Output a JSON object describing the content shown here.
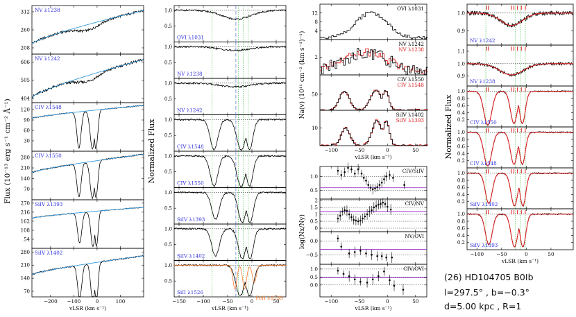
{
  "colors": {
    "frame": "#000000",
    "label_blue": "#3333dd",
    "label_red": "#e02020",
    "fit_cyan": "#3399dd",
    "model_red": "#dd2222",
    "hi_orange": "#ff7a2a",
    "ref_purple": "#9933cc",
    "mark_green": "#33bb33",
    "mark_blue": "#5577cc"
  },
  "object_info": {
    "name": "(26)  HD104705  B0Ib",
    "coords": "l=297.5° , b=−0.3°",
    "dist": "d=5.00 kpc , R=1"
  },
  "chart_data": [
    {
      "id": "flux",
      "type": "line",
      "ylabel": "Flux  (10⁻¹³ erg s⁻¹ cm⁻² Å⁻¹)",
      "xlabel": "vLSR (km s⁻¹)",
      "xlim": [
        -280,
        200
      ],
      "xticks": [
        -200,
        -100,
        0,
        100
      ],
      "tick_labels": [
        "−200",
        "−100",
        "0",
        "100"
      ],
      "panels": [
        {
          "label": "NV λ1238",
          "ylim": [
            190,
            330
          ],
          "yticks": [
            208,
            260,
            312
          ],
          "cont": [
            220,
            316
          ],
          "kind": "nv"
        },
        {
          "label": "NV λ1242",
          "ylim": [
            380,
            650
          ],
          "yticks": [
            404,
            505,
            606
          ],
          "cont": [
            410,
            620
          ],
          "kind": "nv"
        },
        {
          "label": "CIV λ1548",
          "ylim": [
            0,
            140
          ],
          "yticks": [
            0,
            30,
            60,
            90,
            120
          ],
          "cont": [
            95,
            132
          ],
          "kind": "civ"
        },
        {
          "label": "CIV λ1550",
          "ylim": [
            0,
            320
          ],
          "yticks": [
            0,
            70,
            140,
            210,
            280
          ],
          "cont": [
            180,
            300
          ],
          "kind": "civ"
        },
        {
          "label": "SiIV λ1393",
          "ylim": [
            0,
            290
          ],
          "yticks": [
            54,
            108,
            162,
            216,
            270
          ],
          "cont": [
            180,
            245
          ],
          "kind": "siiv"
        },
        {
          "label": "SiIV λ1402",
          "ylim": [
            40,
            300
          ],
          "yticks": [
            70,
            140,
            210,
            280
          ],
          "cont": [
            160,
            260
          ],
          "kind": "siiv"
        }
      ]
    },
    {
      "id": "normflux",
      "type": "line",
      "ylabel": "Normalized Flux",
      "xlabel": "vLSR (km s⁻¹)",
      "xlim": [
        -160,
        70
      ],
      "xticks": [
        -150,
        -100,
        -50,
        0,
        50
      ],
      "tick_labels": [
        "−150",
        "−100",
        "−50",
        "0",
        "50"
      ],
      "panels": [
        {
          "label": "OVI λ1031",
          "ylim": [
            0,
            1.15
          ],
          "yticks": [
            0.0,
            0.5,
            1.0
          ],
          "kind": "ovi"
        },
        {
          "label": "NV λ1238",
          "ylim": [
            0,
            1.15
          ],
          "yticks": [
            0.0,
            0.5,
            1.0
          ],
          "kind": "nvn"
        },
        {
          "label": "NV λ1242",
          "ylim": [
            0,
            1.15
          ],
          "yticks": [
            0.0,
            0.5,
            1.0
          ],
          "kind": "nvn"
        },
        {
          "label": "CIV λ1548",
          "ylim": [
            0,
            1.15
          ],
          "yticks": [
            0.0,
            0.5,
            1.0
          ],
          "kind": "civn"
        },
        {
          "label": "CIV λ1550",
          "ylim": [
            0,
            1.15
          ],
          "yticks": [
            0.0,
            0.5,
            1.0
          ],
          "kind": "civn"
        },
        {
          "label": "SiIV λ1393",
          "ylim": [
            0,
            1.15
          ],
          "yticks": [
            0.0,
            0.5,
            1.0
          ],
          "kind": "siivn"
        },
        {
          "label": "SiIV λ1402",
          "ylim": [
            0,
            1.15
          ],
          "yticks": [
            0.0,
            0.5,
            1.0
          ],
          "kind": "siivn"
        },
        {
          "label": "SiII λ1526",
          "label2": "FeII λ1239",
          "ylim": [
            0,
            1.15
          ],
          "yticks": [
            0.0,
            0.5,
            1.0
          ],
          "kind": "siii"
        }
      ]
    },
    {
      "id": "column_density",
      "type": "step",
      "ylabel": "Na(v)  (10¹¹ cm⁻² (km s⁻¹)⁻¹)",
      "xlabel": "vLSR (km s⁻¹)",
      "xlim": [
        -120,
        70
      ],
      "xticks": [
        -100,
        -50,
        0,
        50
      ],
      "tick_labels": [
        "−100",
        "−50",
        "0",
        "50"
      ],
      "panels": [
        {
          "label": "OVI λ1031",
          "ylim": [
            0,
            16
          ],
          "yticks": [
            0,
            4,
            8,
            12,
            16
          ],
          "kind": "naovi"
        },
        {
          "label": "NV λ1242",
          "label2": "NV λ1238",
          "ylim": [
            0,
            4
          ],
          "yticks": [
            0,
            2,
            4
          ],
          "kind": "nanv"
        },
        {
          "label": "CIV λ1550",
          "label2": "CIV λ1548",
          "ylim": [
            0,
            110
          ],
          "yticks": [
            0,
            50,
            110
          ],
          "kind": "naciv"
        },
        {
          "label": "SiIV λ1402",
          "label2": "SiIV λ1393",
          "ylim": [
            0,
            20
          ],
          "yticks": [
            0,
            10,
            20
          ],
          "kind": "nasiiv"
        }
      ]
    },
    {
      "id": "ratios",
      "type": "scatter",
      "ylabel": "log(Nx/Ny)",
      "xlabel": "vLSR (km s⁻¹)",
      "xlim": [
        -120,
        70
      ],
      "xticks": [
        -100,
        -50,
        0,
        50
      ],
      "tick_labels": [
        "−100",
        "−50",
        "0",
        "50"
      ],
      "panels": [
        {
          "label": "CIV/SiIV",
          "ylim": [
            0.2,
            1.35
          ],
          "yticks": [
            0.5,
            1.0
          ],
          "ref": 0.6,
          "pts": [
            [
              -88,
              1.2
            ],
            [
              -82,
              1.05
            ],
            [
              -76,
              1.15
            ],
            [
              -70,
              1.3
            ],
            [
              -64,
              1.25
            ],
            [
              -58,
              1.1
            ],
            [
              -52,
              1.25
            ],
            [
              -46,
              1.1
            ],
            [
              -42,
              0.95
            ],
            [
              -38,
              0.85
            ],
            [
              -34,
              0.7
            ],
            [
              -30,
              0.6
            ],
            [
              -26,
              0.55
            ],
            [
              -22,
              0.58
            ],
            [
              -18,
              0.62
            ],
            [
              -14,
              0.7
            ],
            [
              -10,
              0.78
            ],
            [
              -6,
              0.9
            ],
            [
              -2,
              1.0
            ],
            [
              4,
              1.05
            ],
            [
              10,
              0.95
            ],
            [
              30,
              0.7
            ]
          ]
        },
        {
          "label": "CIV/NV",
          "ylim": [
            -0.25,
            2.1
          ],
          "yticks": [
            0.0,
            0.5,
            1.0,
            1.5,
            2.0
          ],
          "ref": 1.2,
          "pts": [
            [
              -88,
              0.7
            ],
            [
              -84,
              0.9
            ],
            [
              -80,
              1.2
            ],
            [
              -76,
              1.3
            ],
            [
              -72,
              1.25
            ],
            [
              -68,
              1.0
            ],
            [
              -64,
              0.8
            ],
            [
              -60,
              0.6
            ],
            [
              -56,
              0.55
            ],
            [
              -52,
              0.5
            ],
            [
              -48,
              0.55
            ],
            [
              -44,
              0.7
            ],
            [
              -40,
              0.85
            ],
            [
              -36,
              1.0
            ],
            [
              -32,
              1.2
            ],
            [
              -28,
              1.3
            ],
            [
              -24,
              1.5
            ],
            [
              -20,
              1.6
            ],
            [
              -16,
              1.7
            ],
            [
              -12,
              1.75
            ],
            [
              -8,
              1.85
            ],
            [
              -4,
              1.75
            ],
            [
              0,
              1.55
            ],
            [
              6,
              1.35
            ]
          ]
        },
        {
          "label": "NV/OVI",
          "ylim": [
            -0.85,
            0.35
          ],
          "yticks": [
            -0.5,
            0.0
          ],
          "ref": -0.3,
          "pts": [
            [
              -88,
              0.1
            ],
            [
              -82,
              -0.2
            ],
            [
              -68,
              -0.45
            ],
            [
              -58,
              -0.4
            ],
            [
              -48,
              -0.35
            ],
            [
              -38,
              -0.45
            ],
            [
              -28,
              -0.5
            ],
            [
              -18,
              -0.55
            ],
            [
              -10,
              -0.55
            ],
            [
              -2,
              -0.6
            ],
            [
              8,
              -0.6
            ]
          ]
        },
        {
          "label": "CIV/OVI",
          "ylim": [
            -0.75,
            1.3
          ],
          "yticks": [
            0.0,
            0.5,
            1.0
          ],
          "ref": 0.45,
          "pts": [
            [
              -88,
              0.9
            ],
            [
              -78,
              0.7
            ],
            [
              -68,
              0.55
            ],
            [
              -58,
              0.35
            ],
            [
              -48,
              0.2
            ],
            [
              -36,
              0.15
            ],
            [
              -26,
              0.35
            ],
            [
              -16,
              0.55
            ],
            [
              -6,
              0.85
            ],
            [
              4,
              0.3
            ],
            [
              12,
              -0.05
            ],
            [
              28,
              -0.3
            ]
          ]
        }
      ]
    },
    {
      "id": "fits",
      "type": "line",
      "ylabel": "Normalized Flux",
      "xlabel": "vLSR (km s⁻¹)",
      "xlim": [
        -120,
        95
      ],
      "xticks": [
        -100,
        -50,
        0,
        50
      ],
      "tick_labels": [
        "−100",
        "−50",
        "0",
        "50"
      ],
      "comp_marks": [
        -80,
        -77,
        -30,
        -25,
        -18,
        -10,
        -2
      ],
      "panels": [
        {
          "label": "NV λ1242",
          "ylim": [
            0.82,
            1.05
          ],
          "yticks": [
            0.9,
            1.0
          ],
          "kind": "fnv"
        },
        {
          "label": "NV λ1238",
          "ylim": [
            0.82,
            1.15
          ],
          "yticks": [
            0.9,
            1.0,
            1.1
          ],
          "kind": "fnv2"
        },
        {
          "label": "CIV λ1550",
          "ylim": [
            0,
            1.15
          ],
          "yticks": [
            0.0,
            0.2,
            0.4,
            0.6,
            0.8,
            1.0
          ],
          "kind": "fciv"
        },
        {
          "label": "CIV λ1548",
          "ylim": [
            0,
            1.15
          ],
          "yticks": [
            0.0,
            0.2,
            0.4,
            0.6,
            0.8,
            1.0
          ],
          "kind": "fciv"
        },
        {
          "label": "SiIV λ1402",
          "ylim": [
            0,
            1.15
          ],
          "yticks": [
            0.0,
            0.2,
            0.4,
            0.6,
            0.8,
            1.0
          ],
          "kind": "fsiiv"
        },
        {
          "label": "SiIV λ1393",
          "ylim": [
            0,
            1.15
          ],
          "yticks": [
            0.0,
            0.2,
            0.4,
            0.6,
            0.8,
            1.0
          ],
          "kind": "fsiiv"
        }
      ]
    }
  ]
}
